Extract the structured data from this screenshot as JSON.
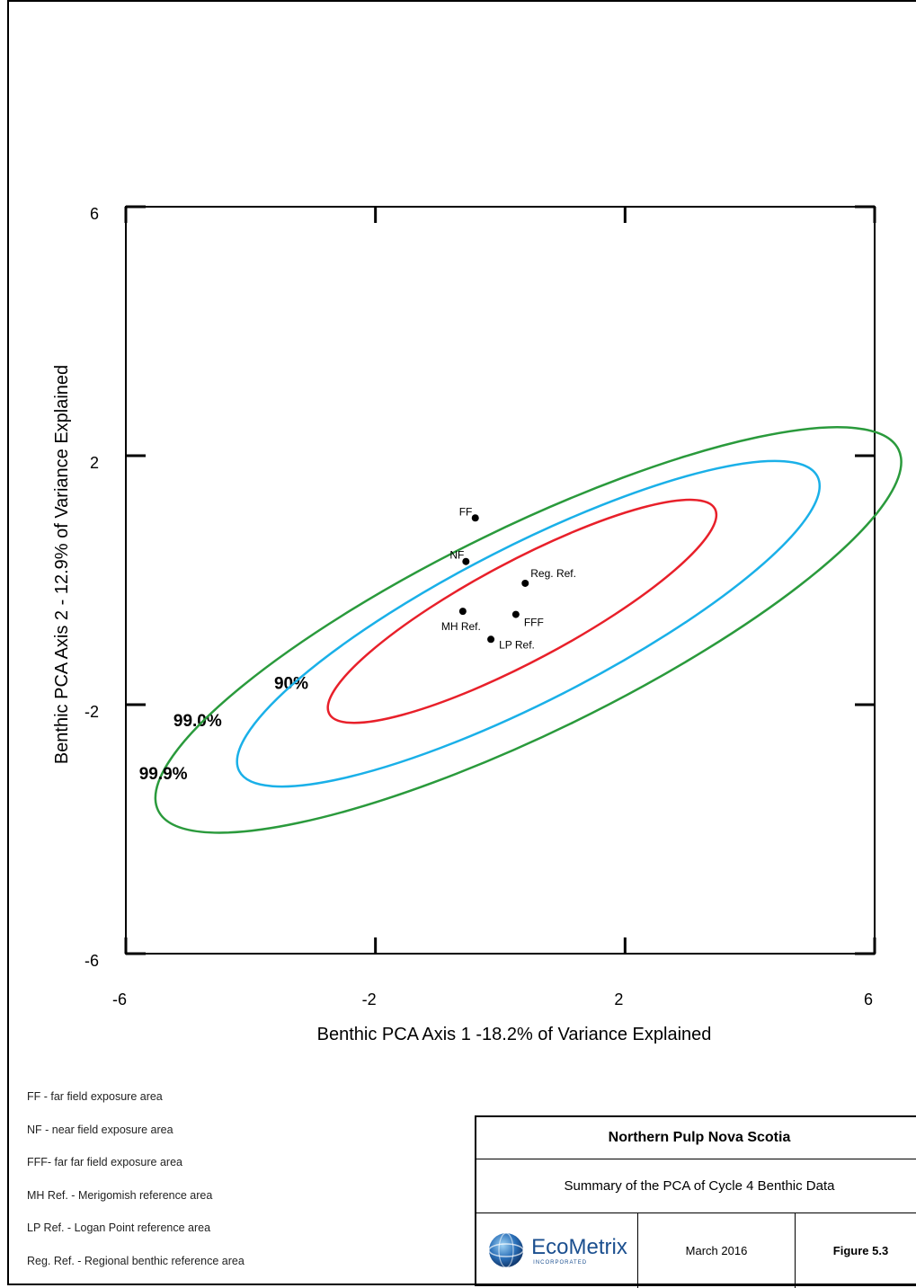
{
  "chart_data": {
    "type": "scatter",
    "title": "",
    "xlabel": "Benthic PCA Axis 1 -18.2% of Variance Explained",
    "ylabel": "Benthic PCA Axis 2 - 12.9% of Variance Explained",
    "xlim": [
      -6,
      6
    ],
    "ylim": [
      -6,
      6
    ],
    "x_ticks": [
      -6,
      -2,
      2,
      6
    ],
    "y_ticks": [
      6,
      2,
      -2,
      -6
    ],
    "x_tick_labels": [
      "-6",
      "-2",
      "2",
      "6"
    ],
    "y_tick_labels": [
      "6",
      "2",
      "-2",
      "-6"
    ],
    "points": [
      {
        "label": "FF",
        "x": -0.4,
        "y": 1.0
      },
      {
        "label": "NF",
        "x": -0.55,
        "y": 0.3
      },
      {
        "label": "Reg. Ref.",
        "x": 0.4,
        "y": -0.05
      },
      {
        "label": "MH Ref.",
        "x": -0.6,
        "y": -0.5
      },
      {
        "label": "FFF",
        "x": 0.25,
        "y": -0.55
      },
      {
        "label": "LP Ref.",
        "x": -0.15,
        "y": -0.95
      }
    ],
    "ellipses": [
      {
        "label": "90%",
        "color": "#e8202a",
        "cx": 0.35,
        "cy": -0.5,
        "rx": 3.5,
        "ry": 0.8,
        "angle_deg": 28
      },
      {
        "label": "99.0%",
        "color": "#1ab0e8",
        "cx": 0.45,
        "cy": -0.7,
        "rx": 5.2,
        "ry": 1.25,
        "angle_deg": 27
      },
      {
        "label": "99.9%",
        "color": "#2a9a3c",
        "cx": 0.45,
        "cy": -0.8,
        "rx": 6.6,
        "ry": 1.65,
        "angle_deg": 26
      }
    ],
    "grid": false
  },
  "legend": [
    "FF - far field exposure area",
    "NF - near field exposure area",
    "FFF- far far field exposure area",
    "MH Ref. - Merigomish reference area",
    "LP Ref. - Logan Point reference area",
    "Reg. Ref. - Regional benthic reference area"
  ],
  "title_block": {
    "client": "Northern Pulp Nova Scotia",
    "subtitle": "Summary of the PCA of Cycle 4 Benthic Data",
    "logo": {
      "name": "EcoMetrix",
      "sub": "INCORPORATED",
      "icon": "globe-icon"
    },
    "date": "March 2016",
    "figure": "Figure 5.3"
  }
}
